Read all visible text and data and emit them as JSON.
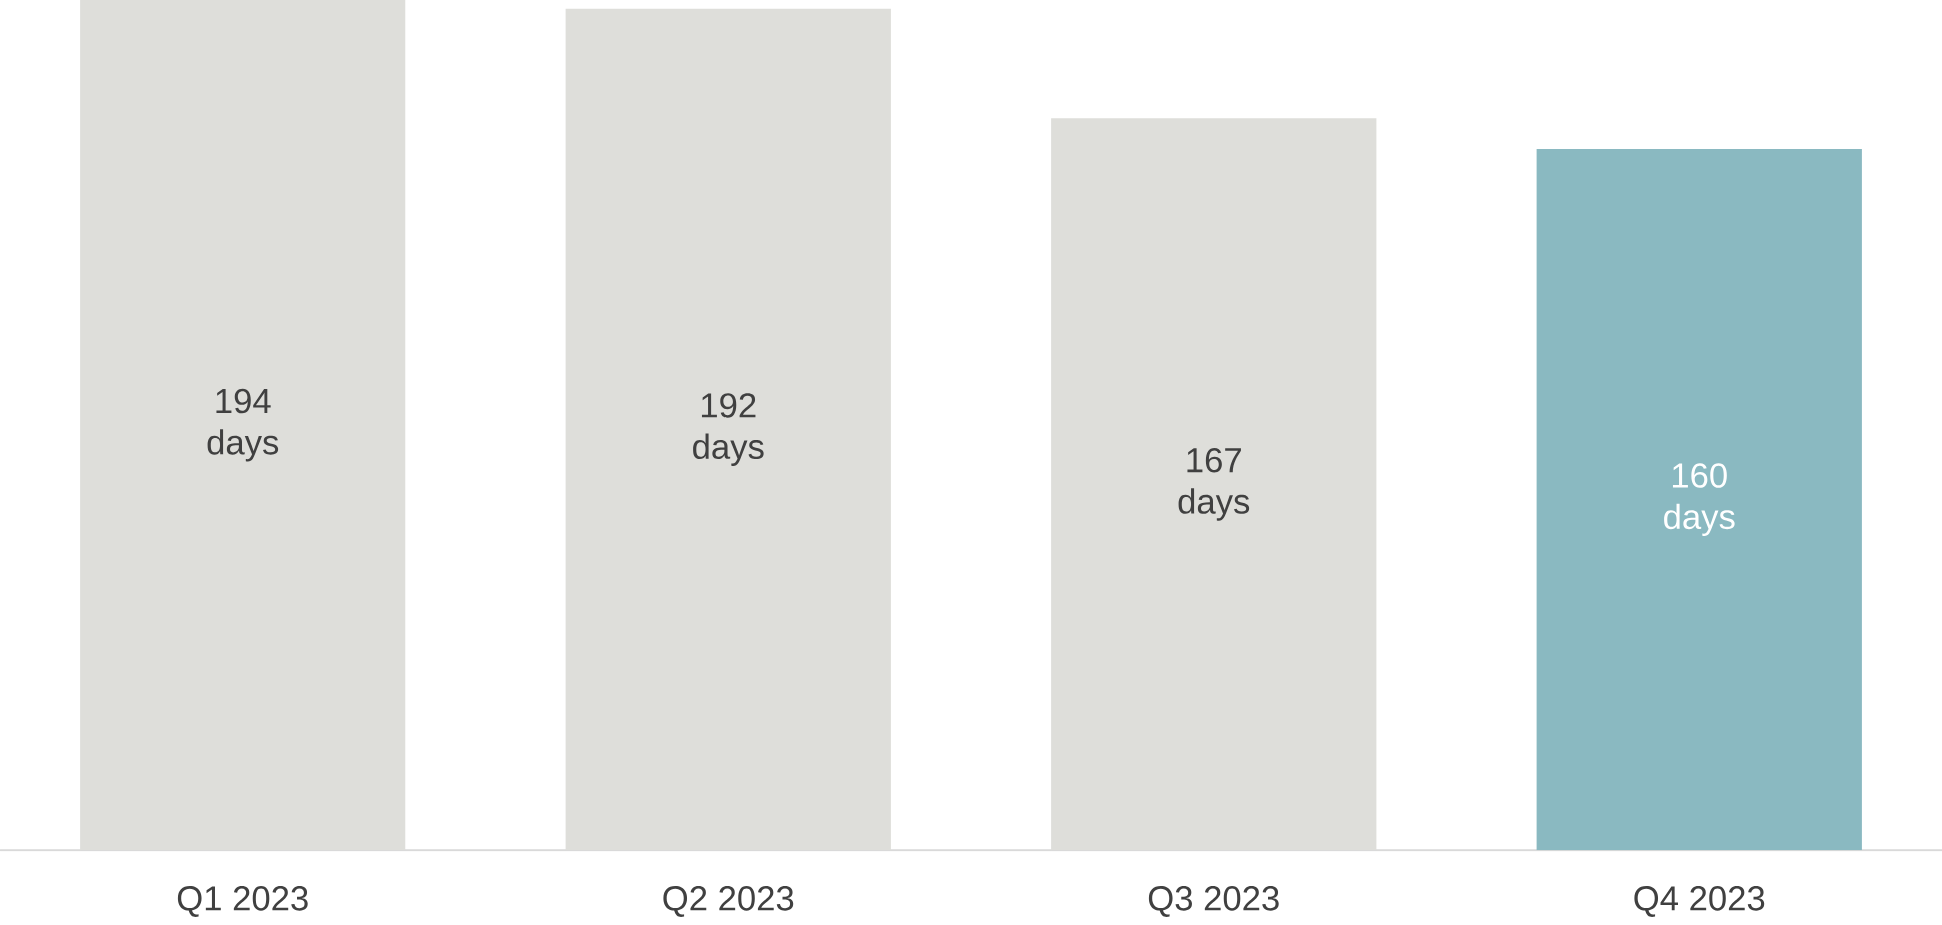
{
  "chart_data": {
    "type": "bar",
    "categories": [
      "Q1 2023",
      "Q2 2023",
      "Q3 2023",
      "Q4 2023"
    ],
    "values": [
      194,
      192,
      167,
      160
    ],
    "colors": [
      "#dededa",
      "#dededa",
      "#dededa",
      "#8ab9c1"
    ],
    "value_labels": [
      "194 days",
      "192 days",
      "167 days",
      "160 days"
    ],
    "tick_labels": "x"
  }
}
